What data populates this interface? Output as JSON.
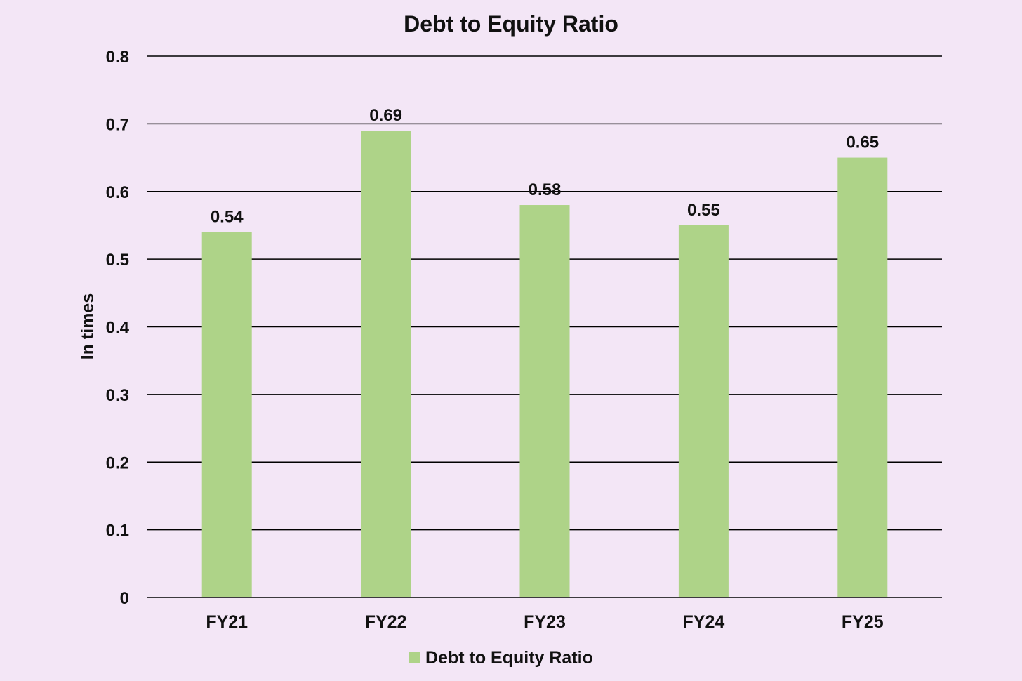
{
  "chart_data": {
    "type": "bar",
    "title": "Debt to Equity Ratio",
    "xlabel": "",
    "ylabel": "In times",
    "categories": [
      "FY21",
      "FY22",
      "FY23",
      "FY24",
      "FY25"
    ],
    "series": [
      {
        "name": "Debt to Equity Ratio",
        "values": [
          0.54,
          0.69,
          0.58,
          0.55,
          0.65
        ],
        "color": "#aed388"
      }
    ],
    "data_labels": [
      "0.54",
      "0.69",
      "0.58",
      "0.55",
      "0.65"
    ],
    "ylim": [
      0,
      0.8
    ],
    "yticks": [
      "0",
      "0.1",
      "0.2",
      "0.3",
      "0.4",
      "0.5",
      "0.6",
      "0.7",
      "0.8"
    ],
    "grid": true,
    "legend": {
      "position": "bottom",
      "entries": [
        "Debt to Equity Ratio"
      ]
    }
  },
  "colors": {
    "background": "#f3e6f6",
    "bar": "#aed388",
    "grid": "#000000",
    "text": "#111111"
  }
}
